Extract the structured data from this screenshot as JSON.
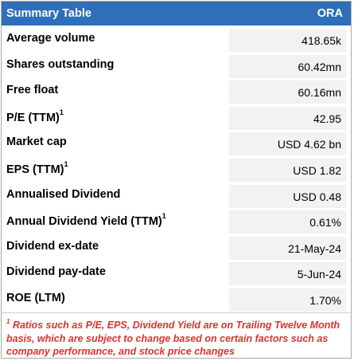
{
  "header": {
    "title": "Summary Table",
    "ticker": "ORA"
  },
  "rows": [
    {
      "label": "Average volume",
      "sup": "",
      "value": "418.65k"
    },
    {
      "label": "Shares outstanding",
      "sup": "",
      "value": "60.42mn"
    },
    {
      "label": "Free float",
      "sup": "",
      "value": "60.16mn"
    },
    {
      "label": "P/E (TTM)",
      "sup": "1",
      "value": "42.95"
    },
    {
      "label": "Market cap",
      "sup": "",
      "value": "USD 4.62 bn"
    },
    {
      "label": "EPS (TTM)",
      "sup": "1",
      "value": "USD 1.82"
    },
    {
      "label": "Annualised Dividend",
      "sup": "",
      "value": "USD 0.48"
    },
    {
      "label": "Annual Dividend Yield (TTM)",
      "sup": "1",
      "value": "0.61%"
    },
    {
      "label": "Dividend ex-date",
      "sup": "",
      "value": "21-May-24"
    },
    {
      "label": "Dividend pay-date",
      "sup": "",
      "value": "5-Jun-24"
    },
    {
      "label": "ROE (LTM)",
      "sup": "",
      "value": "1.70%"
    }
  ],
  "footnote": {
    "marker": "1",
    "text": "Ratios such as P/E, EPS, Dividend Yield are on Trailing Twelve Month basis, which are subject to change based on certain factors such as company performance, and stock price changes"
  },
  "colors": {
    "header_bg": "#2f6fb8",
    "value_bg": "#f2f2f2",
    "footnote_text": "#e03030"
  }
}
